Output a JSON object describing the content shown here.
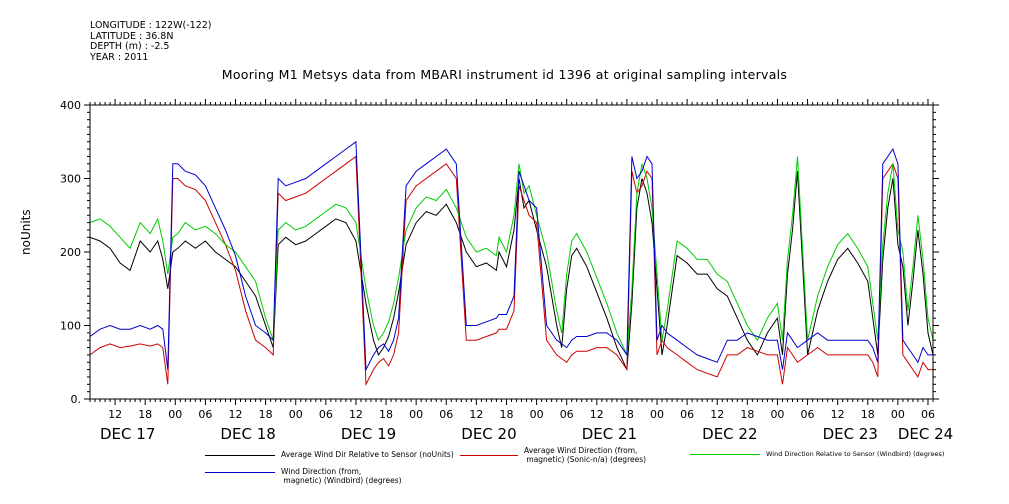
{
  "metadata": {
    "longitude": "LONGITUDE : 122W(-122)",
    "latitude": "LATITUDE : 36.8N",
    "depth": "DEPTH (m) : -2.5",
    "year": "YEAR : 2011"
  },
  "chart_data": {
    "type": "line",
    "title": "Mooring M1 Metsys data from MBARI instrument id 1396 at original sampling intervals",
    "xlabel": "",
    "ylabel": "noUnits",
    "ylim": [
      0,
      400
    ],
    "y_ticks": [
      0,
      100,
      200,
      300,
      400
    ],
    "y_tick_labels": [
      "0.",
      "100",
      "200",
      "300",
      "400"
    ],
    "x_unit": "hours since DEC 17 2011 00:00",
    "xlim": [
      7,
      175
    ],
    "hour_ticks": [
      {
        "h": 12,
        "label": "12"
      },
      {
        "h": 18,
        "label": "18"
      },
      {
        "h": 24,
        "label": "00"
      },
      {
        "h": 30,
        "label": "06"
      },
      {
        "h": 36,
        "label": "12"
      },
      {
        "h": 42,
        "label": "18"
      },
      {
        "h": 48,
        "label": "00"
      },
      {
        "h": 54,
        "label": "06"
      },
      {
        "h": 60,
        "label": "12"
      },
      {
        "h": 66,
        "label": "18"
      },
      {
        "h": 72,
        "label": "00"
      },
      {
        "h": 78,
        "label": "06"
      },
      {
        "h": 84,
        "label": "12"
      },
      {
        "h": 90,
        "label": "18"
      },
      {
        "h": 96,
        "label": "00"
      },
      {
        "h": 102,
        "label": "06"
      },
      {
        "h": 108,
        "label": "12"
      },
      {
        "h": 114,
        "label": "18"
      },
      {
        "h": 120,
        "label": "00"
      },
      {
        "h": 126,
        "label": "06"
      },
      {
        "h": 132,
        "label": "12"
      },
      {
        "h": 138,
        "label": "18"
      },
      {
        "h": 144,
        "label": "00"
      },
      {
        "h": 150,
        "label": "06"
      },
      {
        "h": 156,
        "label": "12"
      },
      {
        "h": 162,
        "label": "18"
      },
      {
        "h": 168,
        "label": "00"
      },
      {
        "h": 174,
        "label": "06"
      }
    ],
    "date_labels": [
      {
        "h": 7,
        "label": "DEC 17"
      },
      {
        "h": 31,
        "label": "DEC 18"
      },
      {
        "h": 55,
        "label": "DEC 19"
      },
      {
        "h": 79,
        "label": "DEC 20"
      },
      {
        "h": 103,
        "label": "DEC 21"
      },
      {
        "h": 127,
        "label": "DEC 22"
      },
      {
        "h": 151,
        "label": "DEC 23"
      },
      {
        "h": 166,
        "label": "DEC 24"
      }
    ],
    "series": [
      {
        "name": "Average Wind Dir Relative to Sensor (noUnits)",
        "color": "#000000",
        "x": [
          7,
          9,
          11,
          13,
          15,
          17,
          19,
          20.5,
          21.5,
          22.5,
          23.5,
          24.5,
          26,
          28,
          30,
          32,
          34,
          36,
          38,
          40,
          42,
          43.5,
          44.5,
          46,
          48,
          50,
          52,
          54,
          56,
          58,
          60,
          62,
          63.5,
          64.5,
          65.5,
          66.5,
          67.5,
          68.5,
          70,
          72,
          74,
          76,
          78,
          80,
          82,
          84,
          86,
          88,
          88.5,
          90,
          91.5,
          92.5,
          93.5,
          94.5,
          96,
          98,
          100,
          101,
          102,
          103,
          104,
          106,
          108,
          110,
          112,
          114,
          115,
          116,
          117,
          118,
          119,
          120,
          121,
          122,
          124,
          126,
          128,
          130,
          132,
          134,
          136,
          138,
          140,
          142,
          144,
          145,
          146,
          147,
          148,
          150,
          152,
          154,
          156,
          158,
          160,
          162,
          163,
          164,
          165,
          166,
          167,
          168,
          169,
          170,
          171,
          172,
          173,
          174,
          175
        ],
        "values": [
          220,
          215,
          205,
          185,
          175,
          215,
          200,
          215,
          190,
          150,
          200,
          205,
          215,
          205,
          215,
          200,
          190,
          180,
          160,
          140,
          100,
          70,
          210,
          220,
          210,
          215,
          225,
          235,
          245,
          240,
          215,
          130,
          80,
          60,
          70,
          85,
          110,
          145,
          210,
          240,
          255,
          250,
          265,
          240,
          200,
          180,
          185,
          175,
          200,
          180,
          230,
          300,
          260,
          270,
          230,
          180,
          100,
          70,
          150,
          195,
          205,
          180,
          145,
          110,
          70,
          40,
          130,
          260,
          300,
          280,
          240,
          150,
          60,
          100,
          195,
          185,
          170,
          170,
          150,
          140,
          110,
          80,
          60,
          90,
          110,
          60,
          170,
          230,
          310,
          60,
          120,
          160,
          190,
          205,
          185,
          160,
          110,
          60,
          190,
          260,
          300,
          210,
          180,
          100,
          160,
          230,
          170,
          90,
          60
        ]
      },
      {
        "name": "Average Wind Direction (from, magnetic) (Sonic-n/a) (degrees)",
        "color": "#cc0000",
        "x": [
          7,
          9,
          11,
          13,
          15,
          17,
          19,
          20.5,
          21.5,
          22.5,
          23.5,
          24.5,
          26,
          28,
          30,
          32,
          34,
          36,
          38,
          40,
          42,
          43.5,
          44.5,
          46,
          48,
          50,
          52,
          54,
          56,
          58,
          60,
          62,
          63.5,
          64.5,
          65.5,
          66.5,
          67.5,
          68.5,
          70,
          72,
          74,
          76,
          78,
          80,
          82,
          84,
          86,
          88,
          88.5,
          90,
          91.5,
          92.5,
          93.5,
          94.5,
          96,
          98,
          100,
          101,
          102,
          103,
          104,
          106,
          108,
          110,
          112,
          114,
          115,
          116,
          117,
          118,
          119,
          120,
          121,
          122,
          124,
          126,
          128,
          130,
          132,
          134,
          136,
          138,
          140,
          142,
          144,
          145,
          146,
          147,
          148,
          150,
          152,
          154,
          156,
          158,
          160,
          162,
          163,
          164,
          165,
          166,
          167,
          168,
          169,
          170,
          171,
          172,
          173,
          174,
          175
        ],
        "values": [
          60,
          70,
          75,
          70,
          72,
          75,
          72,
          75,
          70,
          20,
          300,
          300,
          290,
          285,
          270,
          240,
          210,
          175,
          120,
          80,
          70,
          60,
          280,
          270,
          275,
          280,
          290,
          300,
          310,
          320,
          330,
          20,
          40,
          50,
          55,
          45,
          60,
          90,
          270,
          290,
          300,
          310,
          320,
          300,
          80,
          80,
          85,
          90,
          95,
          95,
          120,
          290,
          270,
          250,
          240,
          80,
          60,
          55,
          50,
          60,
          65,
          65,
          70,
          70,
          60,
          40,
          310,
          280,
          290,
          310,
          300,
          60,
          80,
          70,
          60,
          50,
          40,
          35,
          30,
          60,
          60,
          70,
          65,
          60,
          60,
          20,
          70,
          60,
          50,
          60,
          70,
          60,
          60,
          60,
          60,
          60,
          50,
          30,
          300,
          310,
          320,
          300,
          60,
          50,
          40,
          30,
          50,
          40,
          40
        ]
      },
      {
        "name": "Wind Direction Relative to Sensor (Windbird) (degrees)",
        "color": "#00cc00",
        "x": [
          7,
          9,
          11,
          13,
          15,
          17,
          19,
          20.5,
          21.5,
          22.5,
          23.5,
          24.5,
          26,
          28,
          30,
          32,
          34,
          36,
          38,
          40,
          42,
          43.5,
          44.5,
          46,
          48,
          50,
          52,
          54,
          56,
          58,
          60,
          62,
          63.5,
          64.5,
          65.5,
          66.5,
          67.5,
          68.5,
          70,
          72,
          74,
          76,
          78,
          80,
          82,
          84,
          86,
          88,
          88.5,
          90,
          91.5,
          92.5,
          93.5,
          94.5,
          96,
          98,
          100,
          101,
          102,
          103,
          104,
          106,
          108,
          110,
          112,
          114,
          115,
          116,
          117,
          118,
          119,
          120,
          121,
          122,
          124,
          126,
          128,
          130,
          132,
          134,
          136,
          138,
          140,
          142,
          144,
          145,
          146,
          147,
          148,
          150,
          152,
          154,
          156,
          158,
          160,
          162,
          163,
          164,
          165,
          166,
          167,
          168,
          169,
          170,
          171,
          172,
          173,
          174,
          175
        ],
        "values": [
          240,
          245,
          235,
          220,
          205,
          240,
          225,
          245,
          215,
          170,
          220,
          225,
          240,
          230,
          235,
          225,
          210,
          200,
          180,
          160,
          110,
          80,
          230,
          240,
          230,
          235,
          245,
          255,
          265,
          260,
          240,
          150,
          100,
          80,
          90,
          105,
          130,
          165,
          230,
          260,
          275,
          270,
          285,
          260,
          220,
          200,
          205,
          195,
          220,
          200,
          250,
          320,
          280,
          290,
          250,
          200,
          120,
          90,
          170,
          215,
          225,
          200,
          165,
          130,
          90,
          60,
          150,
          280,
          320,
          300,
          260,
          170,
          80,
          120,
          215,
          205,
          190,
          190,
          170,
          160,
          130,
          100,
          80,
          110,
          130,
          80,
          190,
          250,
          330,
          80,
          140,
          180,
          210,
          225,
          205,
          180,
          130,
          80,
          210,
          280,
          320,
          230,
          200,
          120,
          180,
          250,
          190,
          110,
          80
        ]
      },
      {
        "name": "Wind Direction (from, magnetic) (Windbird) (degrees)",
        "color": "#0000cc",
        "x": [
          7,
          9,
          11,
          13,
          15,
          17,
          19,
          20.5,
          21.5,
          22.5,
          23.5,
          24.5,
          26,
          28,
          30,
          32,
          34,
          36,
          38,
          40,
          42,
          43.5,
          44.5,
          46,
          48,
          50,
          52,
          54,
          56,
          58,
          60,
          62,
          63.5,
          64.5,
          65.5,
          66.5,
          67.5,
          68.5,
          70,
          72,
          74,
          76,
          78,
          80,
          82,
          84,
          86,
          88,
          88.5,
          90,
          91.5,
          92.5,
          93.5,
          94.5,
          96,
          98,
          100,
          101,
          102,
          103,
          104,
          106,
          108,
          110,
          112,
          114,
          115,
          116,
          117,
          118,
          119,
          120,
          121,
          122,
          124,
          126,
          128,
          130,
          132,
          134,
          136,
          138,
          140,
          142,
          144,
          145,
          146,
          147,
          148,
          150,
          152,
          154,
          156,
          158,
          160,
          162,
          163,
          164,
          165,
          166,
          167,
          168,
          169,
          170,
          171,
          172,
          173,
          174,
          175
        ],
        "values": [
          85,
          95,
          100,
          95,
          95,
          100,
          95,
          100,
          95,
          40,
          320,
          320,
          310,
          305,
          290,
          260,
          230,
          195,
          140,
          100,
          90,
          80,
          300,
          290,
          295,
          300,
          310,
          320,
          330,
          340,
          350,
          40,
          60,
          70,
          75,
          65,
          80,
          110,
          290,
          310,
          320,
          330,
          340,
          320,
          100,
          100,
          105,
          110,
          115,
          115,
          140,
          310,
          290,
          270,
          260,
          100,
          80,
          75,
          70,
          80,
          85,
          85,
          90,
          90,
          80,
          60,
          330,
          300,
          310,
          330,
          320,
          80,
          100,
          90,
          80,
          70,
          60,
          55,
          50,
          80,
          80,
          90,
          85,
          80,
          80,
          40,
          90,
          80,
          70,
          80,
          90,
          80,
          80,
          80,
          80,
          80,
          70,
          50,
          320,
          330,
          340,
          320,
          80,
          70,
          60,
          50,
          70,
          60,
          60
        ]
      }
    ]
  },
  "legend": [
    {
      "label": "Average Wind Dir Relative to Sensor (noUnits)",
      "color": "#000000"
    },
    {
      "label": "Average Wind Direction (from,\n magnetic) (Sonic-n/a) (degrees)",
      "color": "#cc0000"
    },
    {
      "label": "Wind Direction Relative to Sensor (Windbird) (degrees)",
      "color": "#00cc00"
    },
    {
      "label": "Wind Direction (from,\n magnetic) (Windbird) (degrees)",
      "color": "#0000cc"
    }
  ]
}
